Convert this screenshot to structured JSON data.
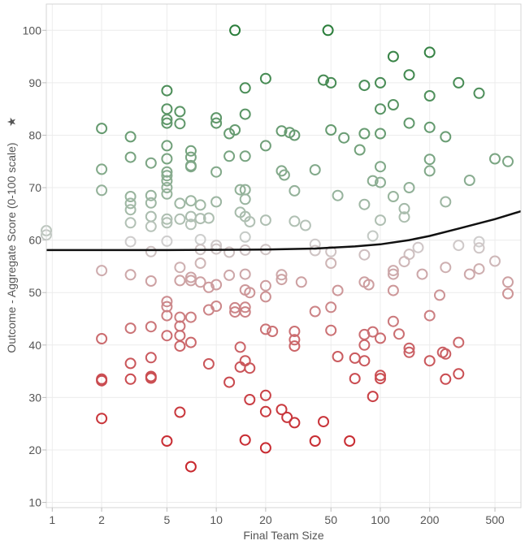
{
  "chart_data": {
    "type": "scatter",
    "title": "",
    "xlabel": "Final Team Size",
    "ylabel": "Outcome - Aggregate Score (0-100 scale)",
    "ylabel_marker": "★",
    "x_scale": "log",
    "xlim": [
      0.92,
      720
    ],
    "ylim": [
      9,
      105
    ],
    "x_ticks": [
      {
        "value": 1,
        "label": "1"
      },
      {
        "value": 2,
        "label": "2"
      },
      {
        "value": 5,
        "label": "5"
      },
      {
        "value": 10,
        "label": "10"
      },
      {
        "value": 20,
        "label": "20"
      },
      {
        "value": 50,
        "label": "50"
      },
      {
        "value": 100,
        "label": "100"
      },
      {
        "value": 200,
        "label": "200"
      },
      {
        "value": 500,
        "label": "500"
      }
    ],
    "y_ticks": [
      {
        "value": 10,
        "label": "10"
      },
      {
        "value": 20,
        "label": "20"
      },
      {
        "value": 30,
        "label": "30"
      },
      {
        "value": 40,
        "label": "40"
      },
      {
        "value": 50,
        "label": "50"
      },
      {
        "value": 60,
        "label": "60"
      },
      {
        "value": 70,
        "label": "70"
      },
      {
        "value": 80,
        "label": "80"
      },
      {
        "value": 90,
        "label": "90"
      },
      {
        "value": 100,
        "label": "100"
      }
    ],
    "grid": true,
    "color_scale": {
      "low": "#c8282e",
      "mid": "#cfcfcf",
      "high": "#2a7d3a",
      "low_value": 17,
      "mid_value": 60,
      "high_value": 100
    },
    "trend_line": {
      "color": "#111111",
      "points": [
        [
          0.92,
          58.1
        ],
        [
          2,
          58.1
        ],
        [
          5,
          58.1
        ],
        [
          10,
          58.15
        ],
        [
          20,
          58.2
        ],
        [
          40,
          58.4
        ],
        [
          70,
          58.8
        ],
        [
          100,
          59.2
        ],
        [
          150,
          60.0
        ],
        [
          200,
          60.8
        ],
        [
          300,
          62.2
        ],
        [
          500,
          64.0
        ],
        [
          720,
          65.5
        ]
      ]
    },
    "points": [
      [
        13,
        100
      ],
      [
        48,
        100
      ],
      [
        120,
        95
      ],
      [
        200,
        95.8
      ],
      [
        5,
        88.5
      ],
      [
        15,
        89
      ],
      [
        20,
        90.8
      ],
      [
        45,
        90.5
      ],
      [
        50,
        90
      ],
      [
        80,
        89.5
      ],
      [
        100,
        90
      ],
      [
        150,
        91.5
      ],
      [
        300,
        90
      ],
      [
        400,
        88
      ],
      [
        200,
        87.5
      ],
      [
        2,
        81.3
      ],
      [
        3,
        79.7
      ],
      [
        5,
        85
      ],
      [
        6,
        84.5
      ],
      [
        5,
        83
      ],
      [
        5,
        82.3
      ],
      [
        6,
        82.2
      ],
      [
        10,
        83.3
      ],
      [
        10,
        82.3
      ],
      [
        12,
        80.3
      ],
      [
        13,
        81
      ],
      [
        15,
        84
      ],
      [
        25,
        80.8
      ],
      [
        28,
        80.5
      ],
      [
        30,
        80
      ],
      [
        50,
        81
      ],
      [
        60,
        79.5
      ],
      [
        80,
        80.3
      ],
      [
        100,
        80.3
      ],
      [
        100,
        85
      ],
      [
        120,
        85.8
      ],
      [
        150,
        82.3
      ],
      [
        200,
        81.5
      ],
      [
        250,
        79.7
      ],
      [
        3,
        75.8
      ],
      [
        4,
        74.7
      ],
      [
        5,
        78
      ],
      [
        5,
        75.5
      ],
      [
        7,
        77
      ],
      [
        7,
        75.8
      ],
      [
        7,
        74
      ],
      [
        12,
        76
      ],
      [
        15,
        76
      ],
      [
        20,
        78
      ],
      [
        75,
        77.2
      ],
      [
        2,
        73.5
      ],
      [
        5,
        73
      ],
      [
        5,
        72.3
      ],
      [
        5,
        71.3
      ],
      [
        7,
        74.2
      ],
      [
        10,
        73
      ],
      [
        25,
        73.2
      ],
      [
        26,
        72.4
      ],
      [
        40,
        73.4
      ],
      [
        100,
        74
      ],
      [
        200,
        75.4
      ],
      [
        200,
        73.2
      ],
      [
        500,
        75.5
      ],
      [
        600,
        75
      ],
      [
        350,
        71.4
      ],
      [
        2,
        69.5
      ],
      [
        3,
        68.3
      ],
      [
        3,
        67
      ],
      [
        3,
        65.8
      ],
      [
        4,
        68.5
      ],
      [
        4,
        67.1
      ],
      [
        5,
        70
      ],
      [
        5,
        68.8
      ],
      [
        6,
        67
      ],
      [
        7,
        67.5
      ],
      [
        8,
        66.7
      ],
      [
        10,
        67.3
      ],
      [
        14,
        69.6
      ],
      [
        15,
        69.6
      ],
      [
        15,
        67.8
      ],
      [
        30,
        69.4
      ],
      [
        55,
        68.5
      ],
      [
        80,
        66.8
      ],
      [
        90,
        71.3
      ],
      [
        100,
        71
      ],
      [
        120,
        68.3
      ],
      [
        150,
        70
      ],
      [
        250,
        67.3
      ],
      [
        140,
        66
      ],
      [
        3,
        63.3
      ],
      [
        4,
        64.5
      ],
      [
        4,
        62.6
      ],
      [
        5,
        64
      ],
      [
        5,
        63.3
      ],
      [
        6,
        64
      ],
      [
        7,
        64.5
      ],
      [
        7,
        63
      ],
      [
        8,
        64.1
      ],
      [
        9,
        64.2
      ],
      [
        14,
        65.3
      ],
      [
        15,
        64.5
      ],
      [
        16,
        63.5
      ],
      [
        20,
        63.8
      ],
      [
        30,
        63.6
      ],
      [
        35,
        62.8
      ],
      [
        100,
        63.8
      ],
      [
        140,
        64.4
      ],
      [
        0.92,
        61.8
      ],
      [
        0.92,
        61
      ],
      [
        3,
        59.7
      ],
      [
        5,
        59.8
      ],
      [
        8,
        60.1
      ],
      [
        10,
        59
      ],
      [
        15,
        60.6
      ],
      [
        40,
        59.2
      ],
      [
        90,
        60.8
      ],
      [
        4,
        57.8
      ],
      [
        8,
        58.2
      ],
      [
        10,
        58.3
      ],
      [
        12,
        57.7
      ],
      [
        15,
        58.1
      ],
      [
        20,
        58.2
      ],
      [
        40,
        58
      ],
      [
        50,
        57.8
      ],
      [
        80,
        57.2
      ],
      [
        150,
        57.3
      ],
      [
        170,
        58.6
      ],
      [
        300,
        59
      ],
      [
        400,
        59.7
      ],
      [
        400,
        58.5
      ],
      [
        2,
        54.2
      ],
      [
        3,
        53.4
      ],
      [
        4,
        52.2
      ],
      [
        6,
        54.8
      ],
      [
        6,
        52.3
      ],
      [
        7,
        52.9
      ],
      [
        7,
        52.3
      ],
      [
        8,
        55.6
      ],
      [
        8,
        52
      ],
      [
        9,
        51
      ],
      [
        10,
        51.5
      ],
      [
        12,
        53.3
      ],
      [
        15,
        53.5
      ],
      [
        15,
        50.5
      ],
      [
        16,
        50
      ],
      [
        20,
        51.3
      ],
      [
        25,
        53.4
      ],
      [
        25,
        52.5
      ],
      [
        33,
        52
      ],
      [
        50,
        55.6
      ],
      [
        55,
        50.4
      ],
      [
        80,
        52
      ],
      [
        85,
        51.5
      ],
      [
        120,
        54.2
      ],
      [
        120,
        53.5
      ],
      [
        120,
        50.4
      ],
      [
        140,
        55.9
      ],
      [
        180,
        53.5
      ],
      [
        230,
        49.5
      ],
      [
        250,
        54.8
      ],
      [
        350,
        53.5
      ],
      [
        400,
        54.5
      ],
      [
        500,
        56
      ],
      [
        600,
        52
      ],
      [
        600,
        49.8
      ],
      [
        5,
        48.3
      ],
      [
        5,
        47.3
      ],
      [
        5,
        45.6
      ],
      [
        6,
        45.3
      ],
      [
        7,
        45.3
      ],
      [
        9,
        46.7
      ],
      [
        10,
        47.4
      ],
      [
        13,
        47.1
      ],
      [
        13,
        46.3
      ],
      [
        15,
        47.2
      ],
      [
        15,
        46.3
      ],
      [
        20,
        49.2
      ],
      [
        40,
        46.4
      ],
      [
        50,
        47.2
      ],
      [
        120,
        44.5
      ],
      [
        200,
        45.6
      ],
      [
        2,
        41.2
      ],
      [
        3,
        43.2
      ],
      [
        4,
        43.5
      ],
      [
        5,
        41.8
      ],
      [
        6,
        43.6
      ],
      [
        6,
        41.8
      ],
      [
        6,
        39.8
      ],
      [
        7,
        40.5
      ],
      [
        14,
        39.6
      ],
      [
        20,
        43
      ],
      [
        22,
        42.6
      ],
      [
        30,
        42.6
      ],
      [
        30,
        41
      ],
      [
        30,
        39.8
      ],
      [
        50,
        42.8
      ],
      [
        55,
        37.8
      ],
      [
        70,
        37.5
      ],
      [
        80,
        42
      ],
      [
        80,
        40
      ],
      [
        90,
        42.5
      ],
      [
        100,
        41.3
      ],
      [
        130,
        42.1
      ],
      [
        150,
        39.4
      ],
      [
        150,
        38.6
      ],
      [
        240,
        38.6
      ],
      [
        250,
        38.3
      ],
      [
        300,
        40.5
      ],
      [
        2,
        33.5
      ],
      [
        2,
        33.2
      ],
      [
        3,
        36.5
      ],
      [
        3,
        33.5
      ],
      [
        4,
        37.6
      ],
      [
        4,
        34
      ],
      [
        4,
        33.7
      ],
      [
        9,
        36.4
      ],
      [
        12,
        32.9
      ],
      [
        14,
        35.8
      ],
      [
        15,
        37
      ],
      [
        16,
        35.6
      ],
      [
        70,
        33.6
      ],
      [
        80,
        37
      ],
      [
        100,
        34.2
      ],
      [
        100,
        33.6
      ],
      [
        200,
        37
      ],
      [
        250,
        33.5
      ],
      [
        300,
        34.5
      ],
      [
        2,
        26
      ],
      [
        6,
        27.2
      ],
      [
        16,
        29.6
      ],
      [
        20,
        30.4
      ],
      [
        20,
        27.3
      ],
      [
        25,
        27.7
      ],
      [
        27,
        26.2
      ],
      [
        30,
        25.2
      ],
      [
        45,
        25.4
      ],
      [
        90,
        30.2
      ],
      [
        5,
        21.7
      ],
      [
        15,
        21.9
      ],
      [
        20,
        20.4
      ],
      [
        40,
        21.7
      ],
      [
        65,
        21.7
      ],
      [
        7,
        16.8
      ]
    ]
  }
}
